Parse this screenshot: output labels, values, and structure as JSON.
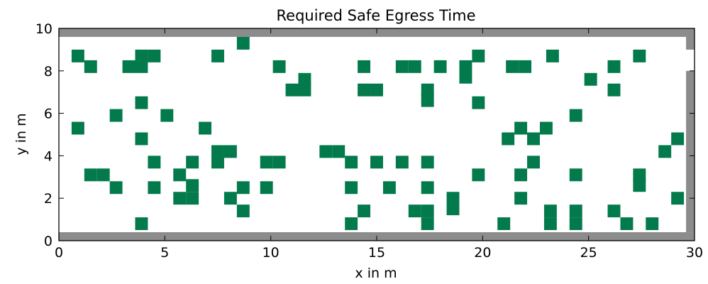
{
  "chart_data": {
    "type": "heatmap",
    "title": "Required Safe Egress Time",
    "xlabel": "x in m",
    "ylabel": "y in m",
    "xlim": [
      0,
      30
    ],
    "ylim": [
      0,
      10
    ],
    "xticks": [
      "0",
      "5",
      "10",
      "15",
      "20",
      "25",
      "30"
    ],
    "yticks": [
      "0",
      "2",
      "4",
      "6",
      "8",
      "10"
    ],
    "grid": false,
    "cell_size": 0.6,
    "colors": {
      "obstacle": "#037A4B",
      "wall": "#8C8C8C",
      "floor": "#FFFFFF"
    },
    "walls": [
      {
        "x": [
          0,
          30
        ],
        "y": [
          0,
          0.4
        ]
      },
      {
        "x": [
          0,
          29.6
        ],
        "y": [
          9.6,
          10
        ]
      },
      {
        "x": [
          29.6,
          30
        ],
        "y": [
          0.4,
          8
        ]
      },
      {
        "x": [
          29.6,
          30
        ],
        "y": [
          9,
          10
        ]
      }
    ],
    "obstacle_cells": [
      [
        0.6,
        8.4
      ],
      [
        1.2,
        7.9
      ],
      [
        3.0,
        7.9
      ],
      [
        3.6,
        7.9
      ],
      [
        3.6,
        8.4
      ],
      [
        4.2,
        8.4
      ],
      [
        7.2,
        8.4
      ],
      [
        8.4,
        9.0
      ],
      [
        10.1,
        7.9
      ],
      [
        10.7,
        6.8
      ],
      [
        11.3,
        6.8
      ],
      [
        11.3,
        7.3
      ],
      [
        14.1,
        7.9
      ],
      [
        14.1,
        6.8
      ],
      [
        14.7,
        6.8
      ],
      [
        15.9,
        7.9
      ],
      [
        16.5,
        7.9
      ],
      [
        17.7,
        7.9
      ],
      [
        17.1,
        6.3
      ],
      [
        17.1,
        6.8
      ],
      [
        18.9,
        7.4
      ],
      [
        18.9,
        7.9
      ],
      [
        19.5,
        8.4
      ],
      [
        19.5,
        6.2
      ],
      [
        21.1,
        7.9
      ],
      [
        21.7,
        7.9
      ],
      [
        23.0,
        8.4
      ],
      [
        24.8,
        7.3
      ],
      [
        25.9,
        7.9
      ],
      [
        25.9,
        6.8
      ],
      [
        27.1,
        8.4
      ],
      [
        0.6,
        5.0
      ],
      [
        2.4,
        5.6
      ],
      [
        3.6,
        6.2
      ],
      [
        4.8,
        5.6
      ],
      [
        6.6,
        5.0
      ],
      [
        3.6,
        4.5
      ],
      [
        4.2,
        3.4
      ],
      [
        1.2,
        2.8
      ],
      [
        1.8,
        2.8
      ],
      [
        2.4,
        2.2
      ],
      [
        4.2,
        2.2
      ],
      [
        5.4,
        2.8
      ],
      [
        6.0,
        3.4
      ],
      [
        6.0,
        2.3
      ],
      [
        5.4,
        1.7
      ],
      [
        6.0,
        1.7
      ],
      [
        7.2,
        3.9
      ],
      [
        7.2,
        3.4
      ],
      [
        7.8,
        3.9
      ],
      [
        8.4,
        2.2
      ],
      [
        7.8,
        1.7
      ],
      [
        8.4,
        1.1
      ],
      [
        9.5,
        2.2
      ],
      [
        9.5,
        3.4
      ],
      [
        10.1,
        3.4
      ],
      [
        12.3,
        3.9
      ],
      [
        12.9,
        3.9
      ],
      [
        13.5,
        3.4
      ],
      [
        13.5,
        2.2
      ],
      [
        14.7,
        3.4
      ],
      [
        15.3,
        2.2
      ],
      [
        15.9,
        3.4
      ],
      [
        17.1,
        3.4
      ],
      [
        17.1,
        2.2
      ],
      [
        19.5,
        2.8
      ],
      [
        20.9,
        4.5
      ],
      [
        21.5,
        5.0
      ],
      [
        22.1,
        4.5
      ],
      [
        22.7,
        5.0
      ],
      [
        21.5,
        2.8
      ],
      [
        22.1,
        3.4
      ],
      [
        21.5,
        1.7
      ],
      [
        24.1,
        2.8
      ],
      [
        24.1,
        5.6
      ],
      [
        27.1,
        2.8
      ],
      [
        27.1,
        2.3
      ],
      [
        28.3,
        3.9
      ],
      [
        28.9,
        4.5
      ],
      [
        28.9,
        1.7
      ],
      [
        3.6,
        0.5
      ],
      [
        13.5,
        0.5
      ],
      [
        14.1,
        1.1
      ],
      [
        16.5,
        1.1
      ],
      [
        17.1,
        1.1
      ],
      [
        17.1,
        0.5
      ],
      [
        18.3,
        1.2
      ],
      [
        18.3,
        1.7
      ],
      [
        20.7,
        0.5
      ],
      [
        22.9,
        0.5
      ],
      [
        22.9,
        1.1
      ],
      [
        24.1,
        0.5
      ],
      [
        24.1,
        1.1
      ],
      [
        25.9,
        1.1
      ],
      [
        26.5,
        0.5
      ],
      [
        27.7,
        0.5
      ]
    ]
  }
}
